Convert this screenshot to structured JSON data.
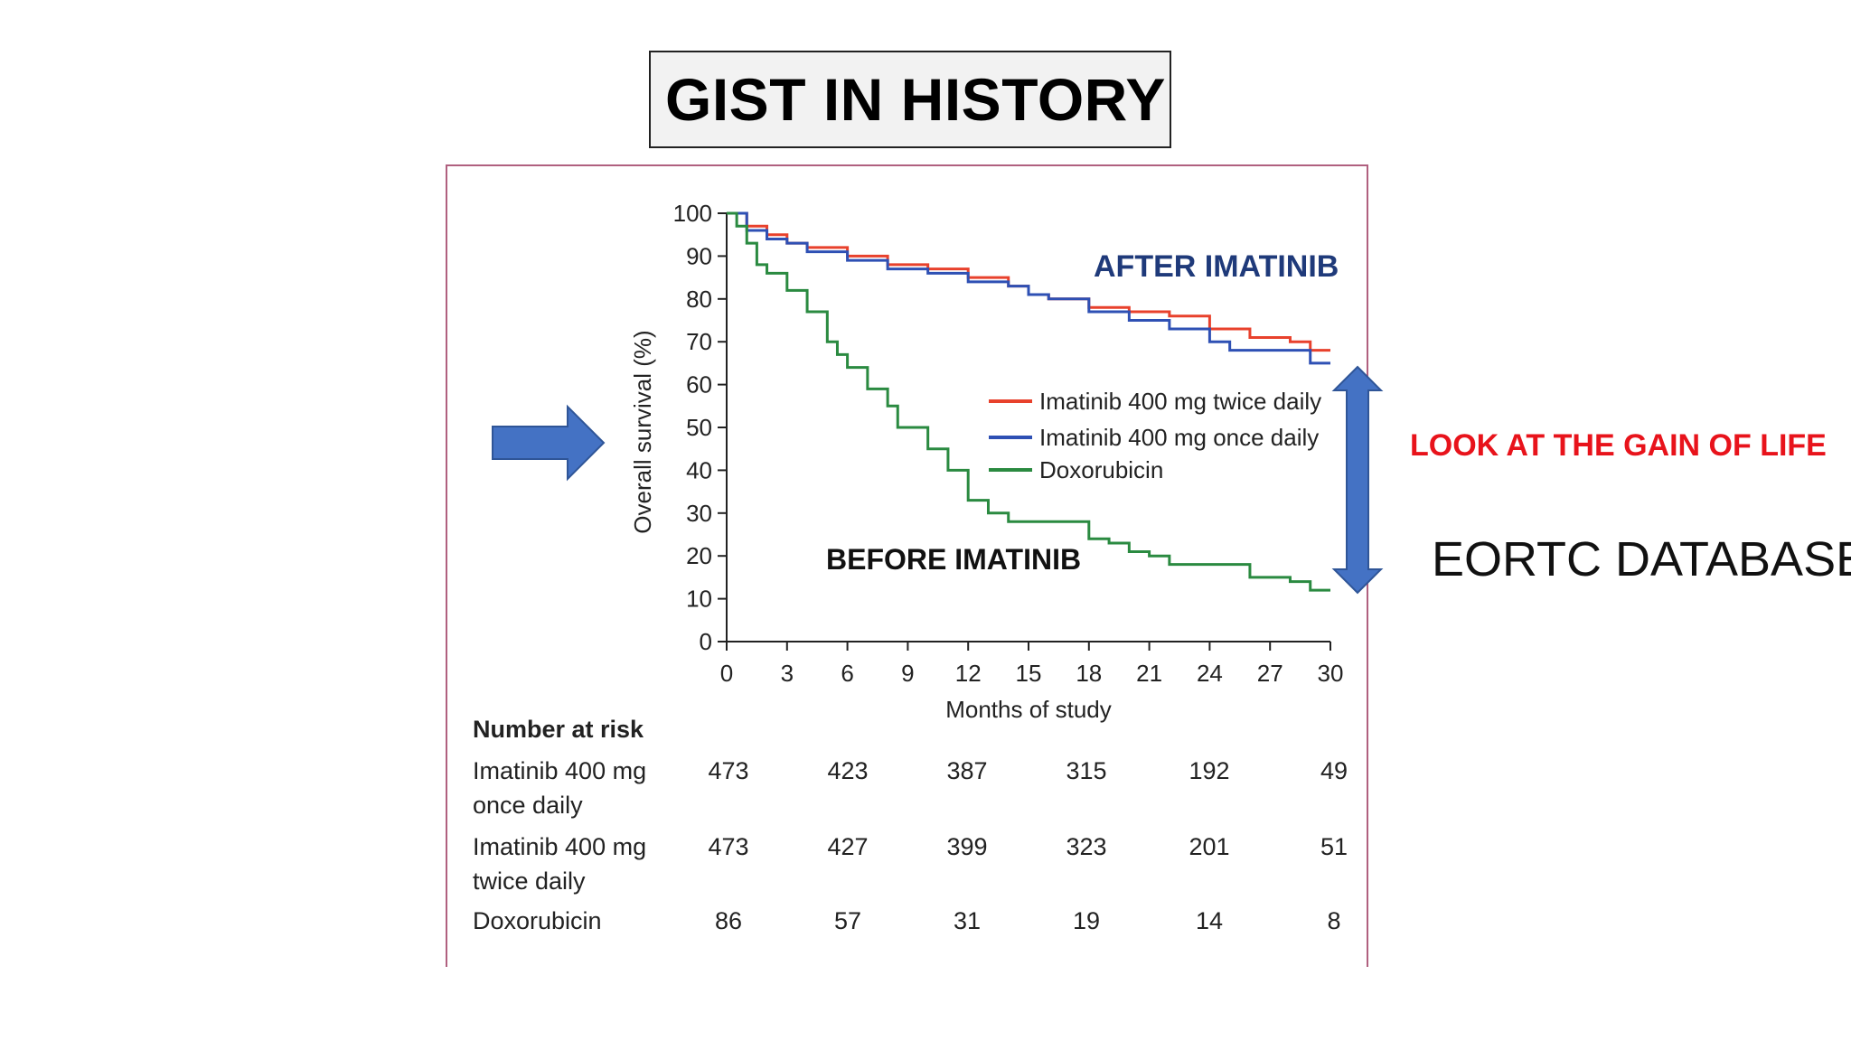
{
  "slide": {
    "title": "GIST IN HISTORY",
    "annotation_gain": "LOOK AT THE GAIN OF LIFE",
    "annotation_source": "EORTC DATABASE",
    "label_after": "AFTER IMATINIB",
    "label_before": "BEFORE IMATINIB",
    "colors": {
      "after": "#1f3a7a",
      "gain": "#e8131b",
      "arrow": "#4472c4"
    }
  },
  "chart_data": {
    "type": "line",
    "title": "",
    "xlabel": "Months of study",
    "ylabel": "Overall survival (%)",
    "xlim": [
      0,
      30
    ],
    "ylim": [
      0,
      100
    ],
    "xticks": [
      0,
      3,
      6,
      9,
      12,
      15,
      18,
      21,
      24,
      27,
      30
    ],
    "yticks": [
      0,
      10,
      20,
      30,
      40,
      50,
      60,
      70,
      80,
      90,
      100
    ],
    "grid": false,
    "legend_placement": "center-right",
    "series": [
      {
        "name": "Imatinib 400 mg twice daily",
        "color": "#e8412c",
        "x": [
          0,
          1,
          2,
          3,
          4,
          6,
          8,
          10,
          12,
          14,
          15,
          16,
          18,
          20,
          22,
          24,
          26,
          28,
          29,
          30
        ],
        "y": [
          100,
          97,
          95,
          93,
          92,
          90,
          88,
          87,
          85,
          83,
          81,
          80,
          78,
          77,
          76,
          73,
          71,
          70,
          68,
          68
        ]
      },
      {
        "name": "Imatinib 400 mg once daily",
        "color": "#2e50b4",
        "x": [
          0,
          1,
          2,
          3,
          4,
          6,
          8,
          10,
          12,
          14,
          15,
          16,
          18,
          20,
          22,
          24,
          25,
          27,
          29,
          30
        ],
        "y": [
          100,
          96,
          94,
          93,
          91,
          89,
          87,
          86,
          84,
          83,
          81,
          80,
          77,
          75,
          73,
          70,
          68,
          68,
          65,
          65
        ]
      },
      {
        "name": "Doxorubicin",
        "color": "#2a8a40",
        "x": [
          0,
          0.5,
          1,
          1.5,
          2,
          3,
          4,
          5,
          5.5,
          6,
          7,
          8,
          8.5,
          9,
          10,
          11,
          12,
          13,
          14,
          16,
          18,
          19,
          20,
          21,
          22,
          24,
          26,
          28,
          29,
          30
        ],
        "y": [
          100,
          97,
          93,
          88,
          86,
          82,
          77,
          70,
          67,
          64,
          59,
          55,
          50,
          50,
          45,
          40,
          33,
          30,
          28,
          28,
          24,
          23,
          21,
          20,
          18,
          18,
          15,
          14,
          12,
          12
        ]
      }
    ]
  },
  "risk_table": {
    "header": "Number at risk",
    "rows": [
      {
        "label": [
          "Imatinib 400 mg",
          "once daily"
        ],
        "values": [
          "473",
          "423",
          "387",
          "315",
          "192",
          "49"
        ]
      },
      {
        "label": [
          "Imatinib 400 mg",
          "twice daily"
        ],
        "values": [
          "473",
          "427",
          "399",
          "323",
          "201",
          "51"
        ]
      },
      {
        "label": [
          "Doxorubicin"
        ],
        "values": [
          "86",
          "57",
          "31",
          "19",
          "14",
          "8"
        ]
      }
    ]
  }
}
